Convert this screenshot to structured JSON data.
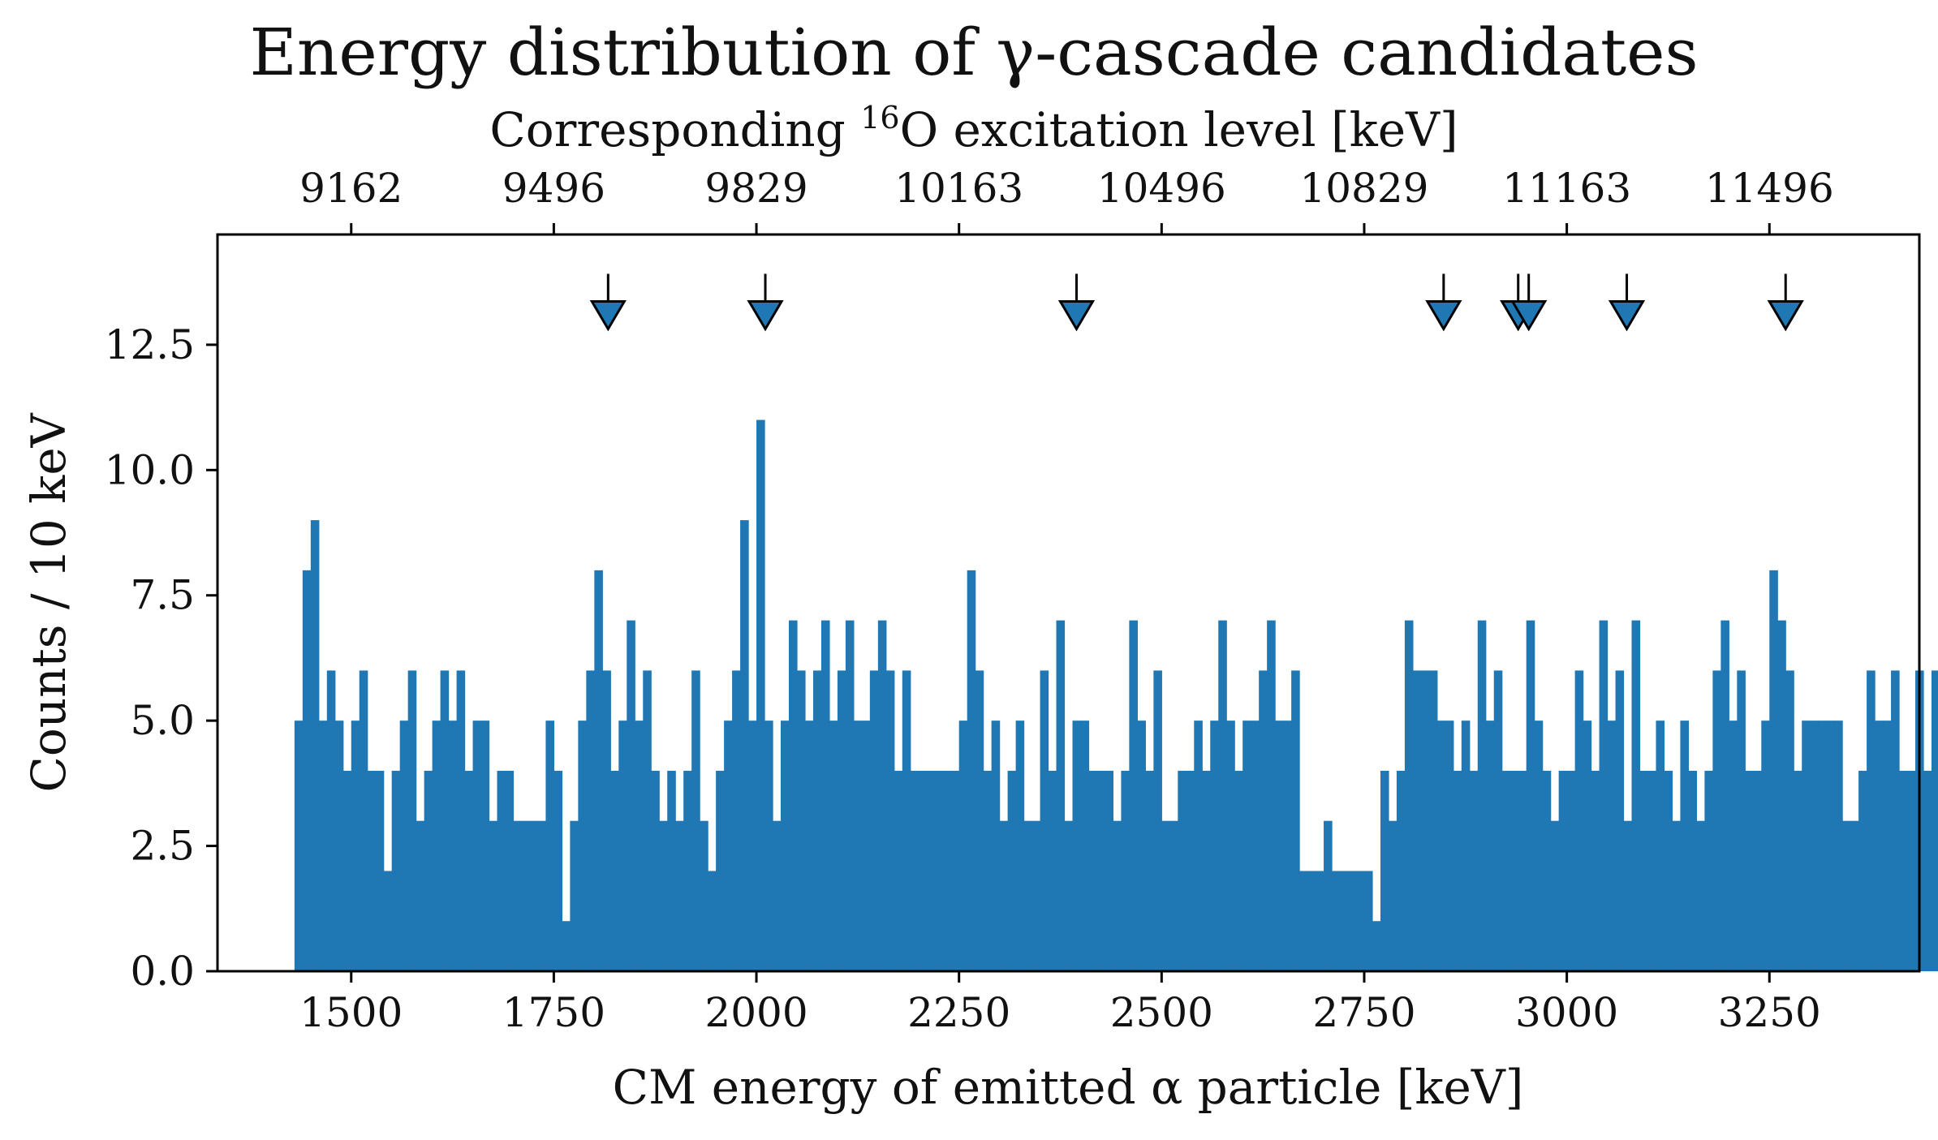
{
  "chart_data": {
    "type": "bar",
    "title": "Energy distribution of γ-cascade candidates",
    "xlabel": "CM energy of emitted α particle [keV]",
    "ylabel": "Counts / 10 keV",
    "top_axis_label_prefix": "Corresponding ",
    "top_axis_label_sup": "16",
    "top_axis_label_suffix": "O excitation level [keV]",
    "xlim": [
      1335,
      3435
    ],
    "ylim": [
      0,
      14.7
    ],
    "bin_width": 10,
    "xticks": [
      1500,
      1750,
      2000,
      2250,
      2500,
      2750,
      3000,
      3250
    ],
    "xtick_labels": [
      "1500",
      "1750",
      "2000",
      "2250",
      "2500",
      "2750",
      "3000",
      "3250"
    ],
    "yticks": [
      0,
      2.5,
      5,
      7.5,
      10,
      12.5
    ],
    "ytick_labels": [
      "0.0",
      "2.5",
      "5.0",
      "7.5",
      "10.0",
      "12.5"
    ],
    "top_ticks_at_x": [
      1500,
      1750,
      2000,
      2250,
      2500,
      2750,
      3000,
      3250
    ],
    "top_tick_labels": [
      "9162",
      "9496",
      "9829",
      "10163",
      "10496",
      "10829",
      "11163",
      "11496"
    ],
    "marker_x": [
      1817,
      2011,
      2395,
      2848,
      2940,
      2953,
      3074,
      3270
    ],
    "marker_y": 13.3,
    "bar_color": "#1f77b4",
    "marker_color": "#1f77b4",
    "grid": false,
    "bin_start": 1430,
    "counts": [
      5,
      8,
      9,
      5,
      6,
      5,
      4,
      5,
      6,
      4,
      4,
      2,
      4,
      5,
      6,
      3,
      4,
      5,
      6,
      5,
      6,
      4,
      5,
      5,
      3,
      4,
      4,
      3,
      3,
      3,
      3,
      5,
      4,
      1,
      3,
      5,
      6,
      8,
      6,
      4,
      5,
      7,
      5,
      6,
      4,
      3,
      4,
      3,
      4,
      6,
      3,
      2,
      4,
      5,
      6,
      9,
      5,
      11,
      5,
      3,
      5,
      7,
      6,
      5,
      6,
      7,
      5,
      6,
      7,
      5,
      5,
      6,
      7,
      6,
      4,
      6,
      4,
      4,
      4,
      4,
      4,
      4,
      5,
      8,
      6,
      4,
      5,
      3,
      4,
      5,
      3,
      3,
      6,
      4,
      7,
      3,
      5,
      5,
      4,
      4,
      4,
      3,
      4,
      7,
      5,
      4,
      6,
      3,
      3,
      4,
      4,
      5,
      4,
      5,
      7,
      5,
      4,
      5,
      5,
      6,
      7,
      5,
      5,
      6,
      2,
      2,
      2,
      3,
      2,
      2,
      2,
      2,
      2,
      1,
      4,
      3,
      4,
      7,
      6,
      6,
      6,
      5,
      5,
      4,
      5,
      4,
      7,
      5,
      6,
      4,
      4,
      4,
      7,
      5,
      4,
      3,
      4,
      4,
      6,
      5,
      4,
      7,
      5,
      6,
      3,
      7,
      4,
      4,
      5,
      4,
      3,
      5,
      4,
      3,
      4,
      6,
      7,
      5,
      6,
      4,
      4,
      5,
      8,
      7,
      6,
      4,
      5,
      5,
      5,
      5,
      5,
      3,
      3,
      4,
      6,
      5,
      5,
      6,
      4,
      4,
      6,
      4,
      6,
      5,
      3,
      3,
      4,
      3,
      5,
      4,
      4,
      5,
      3,
      5,
      7,
      3,
      4,
      3,
      5,
      1,
      4,
      3,
      3,
      4,
      6,
      5,
      2,
      4,
      5,
      4,
      4,
      4,
      4,
      4,
      1,
      4,
      4,
      10,
      5,
      4,
      3,
      5,
      2,
      6,
      6,
      3,
      3,
      3,
      4,
      5,
      4,
      3,
      5,
      4,
      5,
      5,
      6,
      7,
      4,
      4,
      4,
      5,
      8,
      5,
      8,
      3,
      4,
      5,
      4,
      6,
      5,
      6,
      4,
      4,
      5,
      5,
      5,
      4,
      8,
      5,
      6,
      4,
      5,
      6,
      4,
      3,
      10,
      5,
      4,
      2,
      5,
      4,
      6,
      1,
      5,
      4,
      4,
      3,
      4,
      4,
      5,
      3,
      4,
      4,
      7,
      6,
      5,
      4,
      4,
      6,
      5,
      5,
      4,
      3,
      6,
      5,
      5,
      8,
      8,
      4,
      7,
      6,
      5,
      4,
      6,
      8,
      4,
      4,
      10,
      5,
      5,
      8,
      6,
      4,
      4,
      3,
      10,
      11,
      5,
      5,
      4,
      6,
      5,
      5,
      4,
      4,
      3,
      4,
      7,
      6,
      6,
      3,
      4,
      4,
      5,
      5,
      6,
      10,
      8,
      9,
      5,
      5,
      4,
      8,
      8,
      7,
      5,
      6,
      5,
      4,
      4,
      5,
      5,
      6,
      5,
      4,
      8,
      10
    ]
  }
}
